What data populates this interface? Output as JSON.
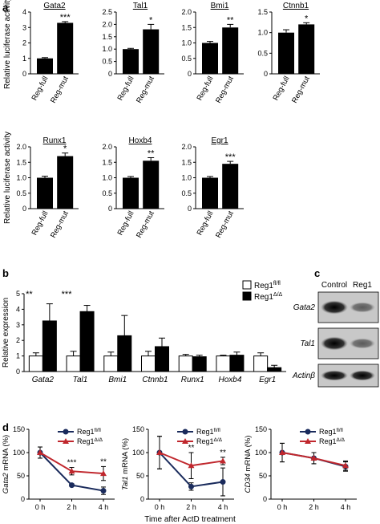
{
  "panel_labels": {
    "a": "a",
    "b": "b",
    "c": "c",
    "d": "d"
  },
  "chart_data": [
    {
      "panel": "a",
      "type": "bar",
      "ylabel": "Relative luciferase activity",
      "categories": [
        "Reg-full",
        "Reg-mut"
      ],
      "charts": [
        {
          "title": "Gata2",
          "values": [
            1.0,
            3.3
          ],
          "errors": [
            0.05,
            0.08
          ],
          "ylim": [
            0,
            4
          ],
          "yticks": [
            "0",
            "1",
            "2",
            "3",
            "4"
          ],
          "signif": "***"
        },
        {
          "title": "Tal1",
          "values": [
            1.0,
            1.8
          ],
          "errors": [
            0.03,
            0.2
          ],
          "ylim": [
            0,
            2.5
          ],
          "yticks": [
            "0",
            "0.5",
            "1.0",
            "1.5",
            "2.0",
            "2.5"
          ],
          "signif": "*"
        },
        {
          "title": "Bmi1",
          "values": [
            1.0,
            1.5
          ],
          "errors": [
            0.05,
            0.1
          ],
          "ylim": [
            0,
            2.0
          ],
          "yticks": [
            "0",
            "0.5",
            "1.0",
            "1.5",
            "2.0"
          ],
          "signif": "**"
        },
        {
          "title": "Ctnnb1",
          "values": [
            1.0,
            1.2
          ],
          "errors": [
            0.07,
            0.04
          ],
          "ylim": [
            0,
            1.5
          ],
          "yticks": [
            "0",
            "0.5",
            "1.0",
            "1.5"
          ],
          "signif": "*"
        },
        {
          "title": "Runx1",
          "values": [
            1.0,
            1.7
          ],
          "errors": [
            0.05,
            0.1
          ],
          "ylim": [
            0,
            2.0
          ],
          "yticks": [
            "0",
            "0.5",
            "1.0",
            "1.5",
            "2.0"
          ],
          "signif": "*"
        },
        {
          "title": "Hoxb4",
          "values": [
            1.0,
            1.55
          ],
          "errors": [
            0.04,
            0.1
          ],
          "ylim": [
            0,
            2.0
          ],
          "yticks": [
            "0",
            "0.5",
            "1.0",
            "1.5",
            "2.0"
          ],
          "signif": "**"
        },
        {
          "title": "Egr1",
          "values": [
            1.0,
            1.45
          ],
          "errors": [
            0.04,
            0.08
          ],
          "ylim": [
            0,
            2.0
          ],
          "yticks": [
            "0",
            "0.5",
            "1.0",
            "1.5",
            "2.0"
          ],
          "signif": "***"
        }
      ]
    },
    {
      "panel": "b",
      "type": "bar",
      "ylabel": "Relative expression",
      "ylim": [
        0,
        5
      ],
      "yticks": [
        "0",
        "1",
        "2",
        "3",
        "4",
        "5"
      ],
      "categories": [
        "Gata2",
        "Tal1",
        "Bmi1",
        "Ctnnb1",
        "Runx1",
        "Hoxb4",
        "Egr1"
      ],
      "series": [
        {
          "name": "Reg1",
          "name_sup": "fl/fl",
          "color": "#ffffff",
          "values": [
            1.0,
            1.0,
            1.0,
            1.0,
            1.0,
            1.0,
            1.0
          ],
          "errors": [
            0.2,
            0.3,
            0.25,
            0.3,
            0.1,
            0.05,
            0.2
          ]
        },
        {
          "name": "Reg1",
          "name_sup": "Δ/Δ",
          "color": "#000000",
          "values": [
            3.25,
            3.85,
            2.3,
            1.6,
            0.95,
            1.05,
            0.25
          ],
          "errors": [
            1.1,
            0.4,
            1.3,
            0.55,
            0.1,
            0.2,
            0.15
          ]
        }
      ],
      "signif": [
        "**",
        "***",
        "",
        "",
        "",
        "",
        ""
      ]
    },
    {
      "panel": "c",
      "type": "table",
      "columns": [
        "Control",
        "Reg1"
      ],
      "rows": [
        "Gata2",
        "Tal1",
        "Actinβ"
      ]
    },
    {
      "panel": "d",
      "type": "line",
      "xlabel": "Time after ActD treatment",
      "x": [
        "0 h",
        "2 h",
        "4 h"
      ],
      "ylim": [
        0,
        150
      ],
      "yticks": [
        "0",
        "50",
        "100",
        "150"
      ],
      "legend_loc": "top-right",
      "legend": [
        {
          "name": "Reg1",
          "sup": "fl/fl",
          "color": "#1a2b5c",
          "marker": "circle"
        },
        {
          "name": "Reg1",
          "sup": "Δ/Δ",
          "color": "#c0272d",
          "marker": "triangle"
        }
      ],
      "charts": [
        {
          "ylabel": "Gata2",
          "ylabel_suffix": " mRNA (%)",
          "series": [
            {
              "values": [
                100,
                30,
                18
              ],
              "errors": [
                12,
                3,
                8
              ]
            },
            {
              "values": [
                100,
                60,
                55
              ],
              "errors": [
                12,
                8,
                15
              ]
            }
          ],
          "signif": [
            "",
            "***",
            "**"
          ]
        },
        {
          "ylabel": "Tal1",
          "ylabel_suffix": " mRNA (%)",
          "series": [
            {
              "values": [
                100,
                27,
                37
              ],
              "errors": [
                35,
                8,
                30
              ]
            },
            {
              "values": [
                100,
                72,
                82
              ],
              "errors": [
                35,
                28,
                8
              ]
            }
          ],
          "signif": [
            "",
            "**",
            "**"
          ]
        },
        {
          "ylabel": "CD34",
          "ylabel_suffix": " mRNA (%)",
          "series": [
            {
              "values": [
                100,
                88,
                70
              ],
              "errors": [
                20,
                12,
                10
              ]
            },
            {
              "values": [
                100,
                88,
                72
              ],
              "errors": [
                20,
                12,
                10
              ]
            }
          ],
          "signif": [
            "",
            "",
            ""
          ]
        }
      ]
    }
  ]
}
